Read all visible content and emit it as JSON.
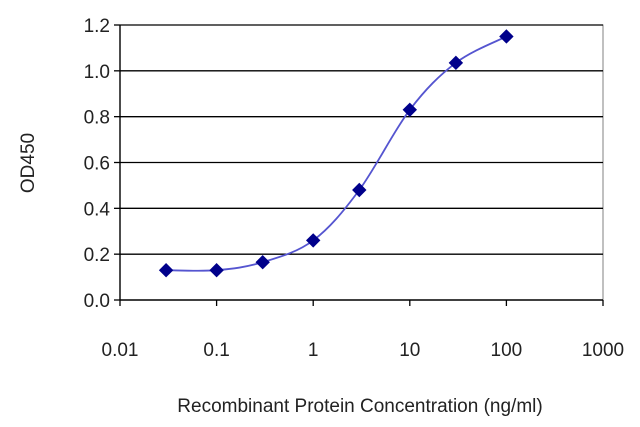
{
  "chart_data": {
    "type": "line",
    "x_scale": "log",
    "xlabel": "Recombinant Protein Concentration (ng/ml)",
    "ylabel": "OD450",
    "xlim": [
      0.01,
      1000
    ],
    "ylim": [
      0.0,
      1.2
    ],
    "x_ticks": [
      0.01,
      0.1,
      1,
      10,
      100,
      1000
    ],
    "x_tick_labels": [
      "0.01",
      "0.1",
      "1",
      "10",
      "100",
      "1000"
    ],
    "y_ticks": [
      0.0,
      0.2,
      0.4,
      0.6,
      0.8,
      1.0,
      1.2
    ],
    "y_tick_labels": [
      "0.0",
      "0.2",
      "0.4",
      "0.6",
      "0.8",
      "1.0",
      "1.2"
    ],
    "grid": "horizontal",
    "legend": "none",
    "series": [
      {
        "x": [
          0.03,
          0.1,
          0.3,
          1,
          3,
          10,
          30,
          100
        ],
        "y": [
          0.13,
          0.13,
          0.165,
          0.26,
          0.48,
          0.83,
          1.035,
          1.15
        ],
        "color": "#00008b",
        "marker": "diamond"
      }
    ]
  },
  "colors": {
    "line": "#5555d0",
    "marker": "#00008b",
    "grid": "#000000",
    "plot_border": "#808080"
  }
}
